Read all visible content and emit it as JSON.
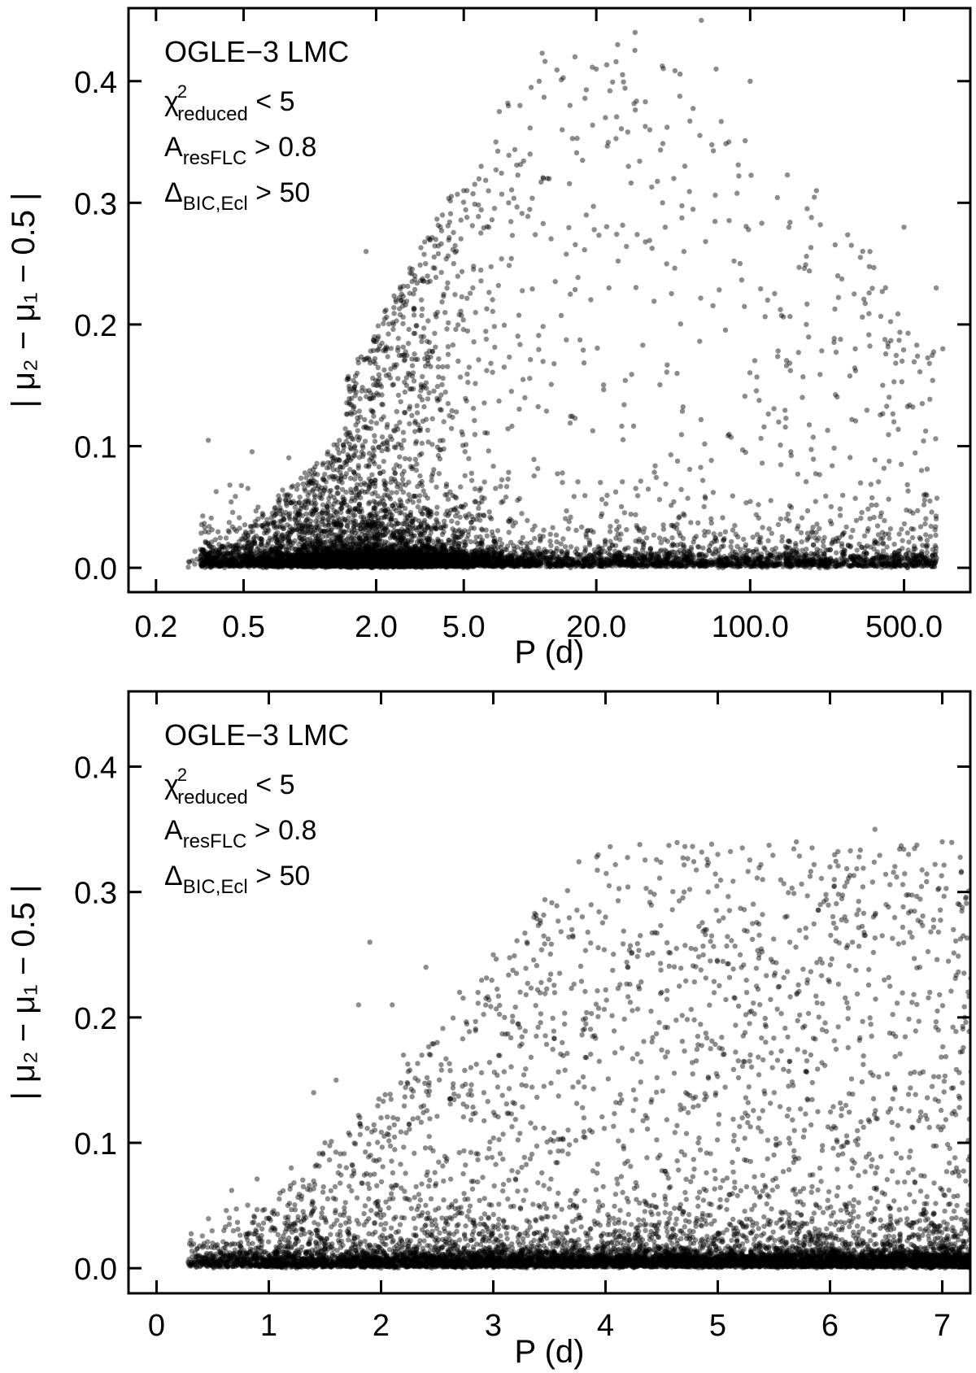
{
  "chart_data": [
    {
      "type": "scatter",
      "scale": "log",
      "xlim": [
        0.15,
        1000
      ],
      "ylim": [
        -0.02,
        0.46
      ],
      "xlabel": "P (d)",
      "ylabel": "| μ₂ − μ₁ − 0.5 |",
      "xtick_values": [
        0.2,
        0.5,
        2.0,
        5.0,
        20.0,
        100.0,
        500.0
      ],
      "xtick_labels": [
        "0.2",
        "0.5",
        "2.0",
        "5.0",
        "20.0",
        "100.0",
        "500.0"
      ],
      "ytick_values": [
        0.0,
        0.1,
        0.2,
        0.3,
        0.4
      ],
      "ytick_labels": [
        "0.0",
        "0.1",
        "0.2",
        "0.3",
        "0.4"
      ],
      "point_color": "#000000",
      "point_opacity": 0.45,
      "annotation": {
        "title": "OGLE−3 LMC",
        "lines": [
          {
            "sym": "χ",
            "sup": "2",
            "sub": "reduced",
            "tail": " < 5"
          },
          {
            "sym": "A",
            "sup": "",
            "sub": "resFLC",
            "tail": " > 0.8"
          },
          {
            "sym": "Δ",
            "sup": "",
            "sub": "BIC,Ecl",
            "tail": " > 50"
          }
        ]
      },
      "points": [
        [
          0.3,
          0.003
        ],
        [
          0.35,
          0.005
        ],
        [
          0.4,
          0.002
        ],
        [
          0.45,
          0.004
        ],
        [
          0.5,
          0.01
        ],
        [
          0.55,
          0.03
        ],
        [
          0.6,
          0.02
        ],
        [
          0.7,
          0.015
        ],
        [
          0.8,
          0.025
        ],
        [
          0.9,
          0.03
        ],
        [
          1.0,
          0.02
        ],
        [
          1.2,
          0.05
        ],
        [
          1.4,
          0.07
        ],
        [
          1.6,
          0.1
        ],
        [
          1.8,
          0.26
        ],
        [
          1.9,
          0.12
        ],
        [
          2.0,
          0.15
        ],
        [
          2.2,
          0.18
        ],
        [
          2.4,
          0.2
        ],
        [
          2.6,
          0.22
        ],
        [
          2.8,
          0.16
        ],
        [
          3.0,
          0.24
        ],
        [
          3.2,
          0.19
        ],
        [
          3.5,
          0.27
        ],
        [
          3.8,
          0.21
        ],
        [
          4.0,
          0.29
        ],
        [
          4.5,
          0.25
        ],
        [
          5.0,
          0.31
        ],
        [
          5.5,
          0.23
        ],
        [
          6.0,
          0.33
        ],
        [
          6.5,
          0.28
        ],
        [
          7.0,
          0.35
        ],
        [
          8.0,
          0.3
        ],
        [
          9.0,
          0.38
        ],
        [
          10.0,
          0.34
        ],
        [
          11.0,
          0.4
        ],
        [
          12.0,
          0.32
        ],
        [
          14.0,
          0.36
        ],
        [
          16.0,
          0.42
        ],
        [
          18.0,
          0.29
        ],
        [
          20.0,
          0.41
        ],
        [
          22.0,
          0.37
        ],
        [
          25.0,
          0.43
        ],
        [
          28.0,
          0.33
        ],
        [
          30.0,
          0.44
        ],
        [
          35.0,
          0.36
        ],
        [
          40.0,
          0.3
        ],
        [
          45.0,
          0.32
        ],
        [
          50.0,
          0.26
        ],
        [
          60.0,
          0.45
        ],
        [
          70.0,
          0.41
        ],
        [
          80.0,
          0.35
        ],
        [
          90.0,
          0.25
        ],
        [
          100.0,
          0.4
        ],
        [
          120.0,
          0.22
        ],
        [
          150.0,
          0.28
        ],
        [
          180.0,
          0.2
        ],
        [
          200.0,
          0.31
        ],
        [
          250.0,
          0.24
        ],
        [
          300.0,
          0.18
        ],
        [
          350.0,
          0.26
        ],
        [
          400.0,
          0.15
        ],
        [
          450.0,
          0.12
        ],
        [
          500.0,
          0.28
        ],
        [
          600.0,
          0.08
        ],
        [
          700.0,
          0.23
        ],
        [
          750.0,
          0.18
        ]
      ]
    },
    {
      "type": "scatter",
      "scale": "linear",
      "xlim": [
        -0.25,
        7.25
      ],
      "ylim": [
        -0.02,
        0.46
      ],
      "xlabel": "P (d)",
      "ylabel": "| μ₂ − μ₁ − 0.5 |",
      "xtick_values": [
        0,
        1,
        2,
        3,
        4,
        5,
        6,
        7
      ],
      "xtick_labels": [
        "0",
        "1",
        "2",
        "3",
        "4",
        "5",
        "6",
        "7"
      ],
      "ytick_values": [
        0.0,
        0.1,
        0.2,
        0.3,
        0.4
      ],
      "ytick_labels": [
        "0.0",
        "0.1",
        "0.2",
        "0.3",
        "0.4"
      ],
      "point_color": "#000000",
      "point_opacity": 0.45,
      "annotation": {
        "title": "OGLE−3 LMC",
        "lines": [
          {
            "sym": "χ",
            "sup": "2",
            "sub": "reduced",
            "tail": " < 5"
          },
          {
            "sym": "A",
            "sup": "",
            "sub": "resFLC",
            "tail": " > 0.8"
          },
          {
            "sym": "Δ",
            "sup": "",
            "sub": "BIC,Ecl",
            "tail": " > 50"
          }
        ]
      },
      "points": [
        [
          0.3,
          0.003
        ],
        [
          0.4,
          0.005
        ],
        [
          0.5,
          0.02
        ],
        [
          0.6,
          0.03
        ],
        [
          0.8,
          0.025
        ],
        [
          1.0,
          0.04
        ],
        [
          1.1,
          0.06
        ],
        [
          1.2,
          0.08
        ],
        [
          1.4,
          0.14
        ],
        [
          1.5,
          0.1
        ],
        [
          1.6,
          0.15
        ],
        [
          1.8,
          0.21
        ],
        [
          1.9,
          0.26
        ],
        [
          2.0,
          0.12
        ],
        [
          2.1,
          0.21
        ],
        [
          2.2,
          0.17
        ],
        [
          2.4,
          0.24
        ],
        [
          2.5,
          0.18
        ],
        [
          2.7,
          0.22
        ],
        [
          2.8,
          0.16
        ],
        [
          3.0,
          0.25
        ],
        [
          3.1,
          0.2
        ],
        [
          3.3,
          0.26
        ],
        [
          3.5,
          0.23
        ],
        [
          3.7,
          0.27
        ],
        [
          3.8,
          0.19
        ],
        [
          4.0,
          0.28
        ],
        [
          4.2,
          0.24
        ],
        [
          4.4,
          0.3
        ],
        [
          4.5,
          0.22
        ],
        [
          4.7,
          0.3
        ],
        [
          4.9,
          0.27
        ],
        [
          5.0,
          0.33
        ],
        [
          5.2,
          0.25
        ],
        [
          5.4,
          0.31
        ],
        [
          5.6,
          0.28
        ],
        [
          5.7,
          0.34
        ],
        [
          5.8,
          0.23
        ],
        [
          6.0,
          0.32
        ],
        [
          6.2,
          0.26
        ],
        [
          6.4,
          0.35
        ],
        [
          6.5,
          0.29
        ],
        [
          6.7,
          0.33
        ],
        [
          6.8,
          0.24
        ],
        [
          7.0,
          0.34
        ],
        [
          7.1,
          0.27
        ],
        [
          7.2,
          0.2
        ]
      ]
    }
  ]
}
